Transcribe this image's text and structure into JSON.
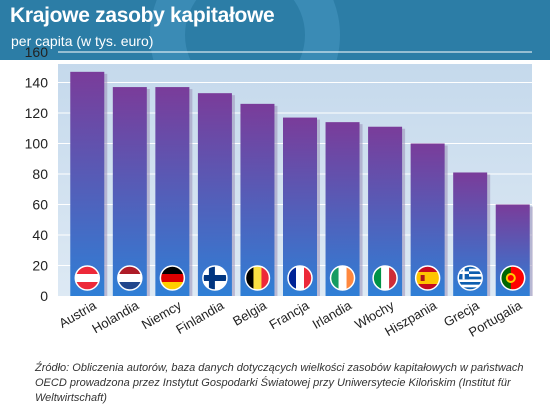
{
  "header": {
    "title": "Krajowe zasoby kapitałowe",
    "subtitle": "per capita (w tys. euro)"
  },
  "source": {
    "text": "Źródło: Obliczenia autorów, baza danych dotyczących wielkości zasobów kapitałowych w państwach OECD prowadzona przez Instytut Gospodarki Światowej przy Uniwersytecie Kilońskim (Institut für Weltwirtschaft)"
  },
  "colors": {
    "header_bg": "#2c7da6",
    "plot_bg": "#cfe0ef",
    "bar_top": "#7a3c9a",
    "bar_bottom": "#2f7fd6"
  },
  "chart_data": {
    "type": "bar",
    "title": "Krajowe zasoby kapitałowe",
    "subtitle": "per capita (w tys. euro)",
    "categories": [
      "Austria",
      "Holandia",
      "Niemcy",
      "Finlandia",
      "Belgia",
      "Francja",
      "Irlandia",
      "Włochy",
      "Hiszpania",
      "Grecja",
      "Portugalia"
    ],
    "values": [
      147,
      137,
      137,
      133,
      126,
      117,
      114,
      111,
      100,
      81,
      60
    ],
    "flag_icons": [
      "flag-austria-icon",
      "flag-netherlands-icon",
      "flag-germany-icon",
      "flag-finland-icon",
      "flag-belgium-icon",
      "flag-france-icon",
      "flag-ireland-icon",
      "flag-italy-icon",
      "flag-spain-icon",
      "flag-greece-icon",
      "flag-portugal-icon"
    ],
    "yticks": [
      0,
      20,
      40,
      60,
      80,
      100,
      120,
      140,
      160
    ],
    "ylim": [
      0,
      160
    ],
    "grid": true,
    "legend": "none",
    "xlabel": "",
    "ylabel": ""
  }
}
